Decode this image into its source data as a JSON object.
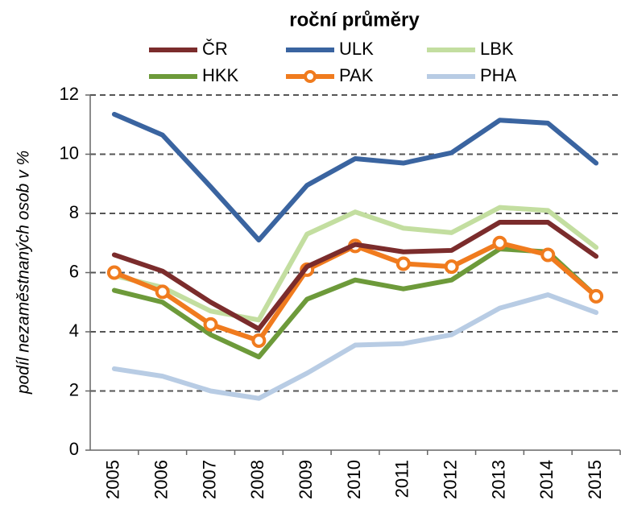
{
  "chart_data": {
    "type": "line",
    "title": "roční průměry",
    "y_label": "podíl nezaměstnaných osob v %",
    "categories": [
      "2005",
      "2006",
      "2007",
      "2008",
      "2009",
      "2010",
      "2011",
      "2012",
      "2013",
      "2014",
      "2015"
    ],
    "series": [
      {
        "name": "ČR",
        "color": "#7b2c2c",
        "values": [
          6.6,
          6.05,
          5.0,
          4.1,
          6.2,
          6.95,
          6.7,
          6.75,
          7.7,
          7.7,
          6.55
        ]
      },
      {
        "name": "ULK",
        "color": "#3a64a0",
        "values": [
          11.35,
          10.65,
          8.9,
          7.1,
          8.95,
          9.85,
          9.7,
          10.05,
          11.15,
          11.05,
          9.7
        ]
      },
      {
        "name": "LBK",
        "color": "#c3dea0",
        "values": [
          5.9,
          5.5,
          4.7,
          4.4,
          7.3,
          8.05,
          7.5,
          7.35,
          8.2,
          8.1,
          6.85
        ]
      },
      {
        "name": "HKK",
        "color": "#6d9a3a",
        "values": [
          5.4,
          5.0,
          3.9,
          3.15,
          5.1,
          5.75,
          5.45,
          5.75,
          6.8,
          6.7,
          5.2
        ]
      },
      {
        "name": "PAK",
        "color": "#f07b1e",
        "markers": true,
        "values": [
          6.0,
          5.35,
          4.25,
          3.7,
          6.1,
          6.9,
          6.3,
          6.2,
          7.0,
          6.6,
          5.2
        ]
      },
      {
        "name": "PHA",
        "color": "#b8cce4",
        "values": [
          2.75,
          2.5,
          2.0,
          1.75,
          2.6,
          3.55,
          3.6,
          3.9,
          4.8,
          5.25,
          4.65
        ]
      }
    ],
    "ylim": [
      0,
      12
    ],
    "yticks": [
      0,
      2,
      4,
      6,
      8,
      10,
      12
    ],
    "grid": true
  }
}
